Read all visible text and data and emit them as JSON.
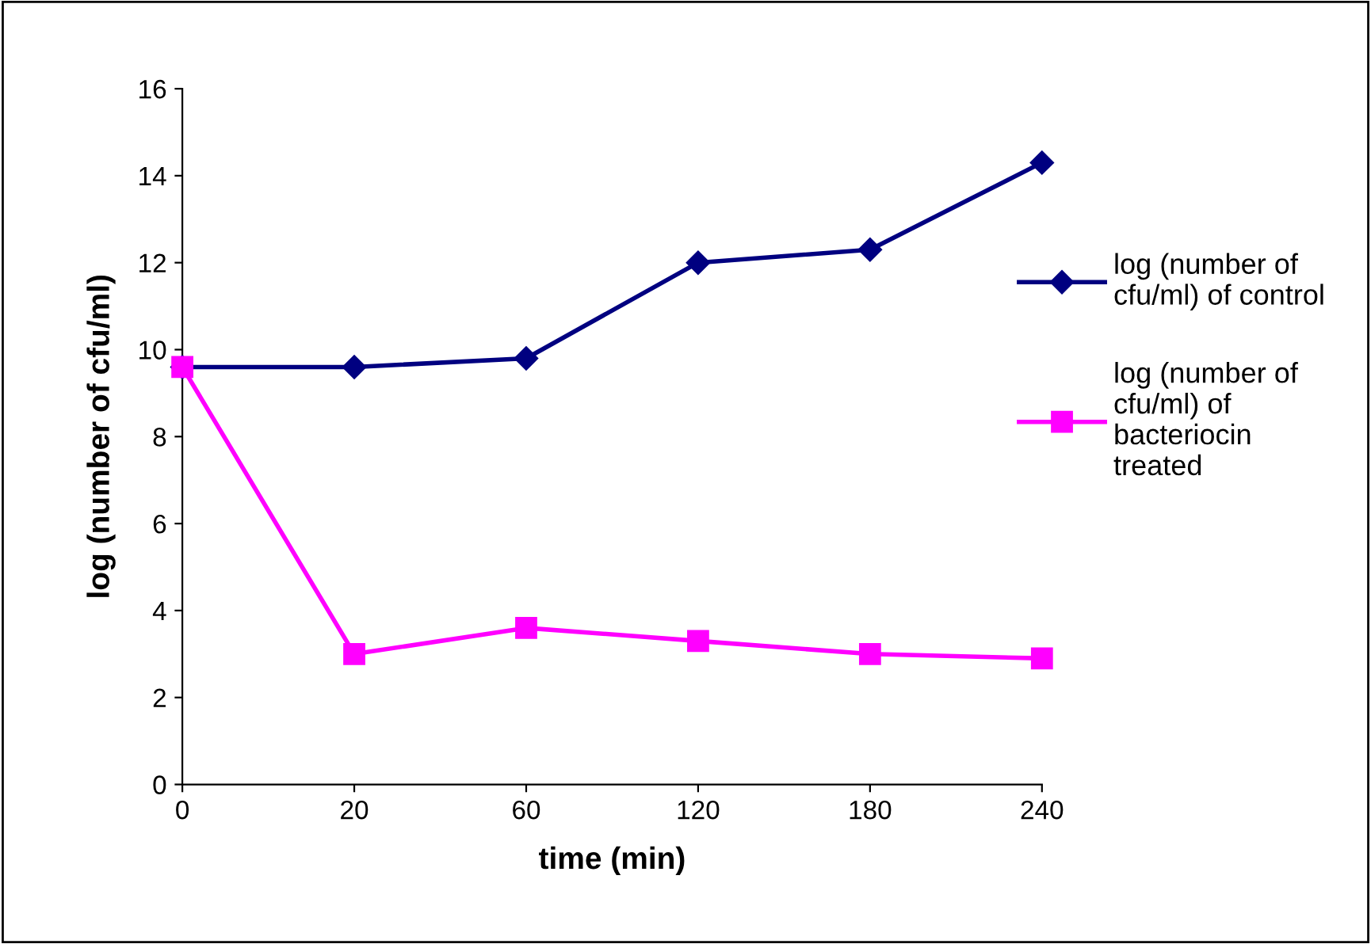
{
  "chart_data": {
    "type": "line",
    "xlabel": "time (min)",
    "ylabel": "log (number of cfu/ml)",
    "categories": [
      "0",
      "20",
      "60",
      "120",
      "180",
      "240"
    ],
    "series": [
      {
        "name": "log (number of\ncfu/ml) of control",
        "color": "#000080",
        "marker": "diamond",
        "values": [
          9.6,
          9.6,
          9.8,
          12.0,
          12.3,
          14.3
        ]
      },
      {
        "name": "log (number of\ncfu/ml) of\nbacteriocin\ntreated",
        "color": "#ff00ff",
        "marker": "square",
        "values": [
          9.6,
          3.0,
          3.6,
          3.3,
          3.0,
          2.9
        ]
      }
    ],
    "ylim": [
      0,
      16
    ],
    "yticks": [
      0,
      2,
      4,
      6,
      8,
      10,
      12,
      14,
      16
    ],
    "grid": false,
    "legend": "right",
    "line_style": "solid"
  }
}
